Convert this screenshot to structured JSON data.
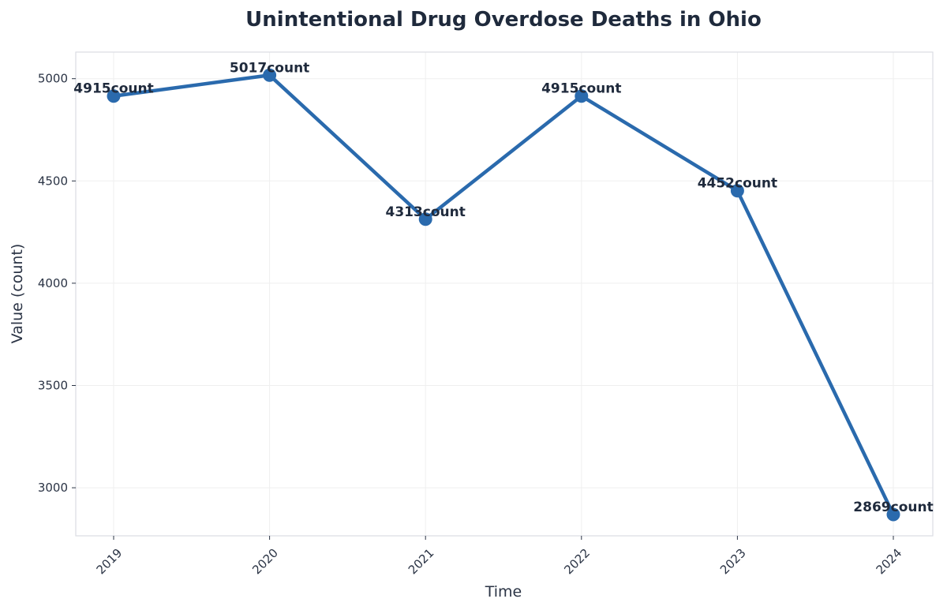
{
  "chart_data": {
    "type": "line",
    "title": "Unintentional Drug Overdose Deaths in Ohio",
    "xlabel": "Time",
    "ylabel": "Value (count)",
    "categories": [
      "2019",
      "2020",
      "2021",
      "2022",
      "2023",
      "2024"
    ],
    "values": [
      4915,
      5017,
      4313,
      4915,
      4452,
      2869
    ],
    "data_labels": [
      "4915count",
      "5017count",
      "4313count",
      "4915count",
      "4452count",
      "2869count"
    ],
    "y_ticks": [
      3000,
      3500,
      4000,
      4500,
      5000
    ],
    "ylim": [
      2765,
      5130
    ],
    "grid": true,
    "colors": {
      "line": "#2a6aad",
      "marker": "#2a6aad",
      "grid": "#efefef",
      "frame": "#dadde3"
    }
  }
}
